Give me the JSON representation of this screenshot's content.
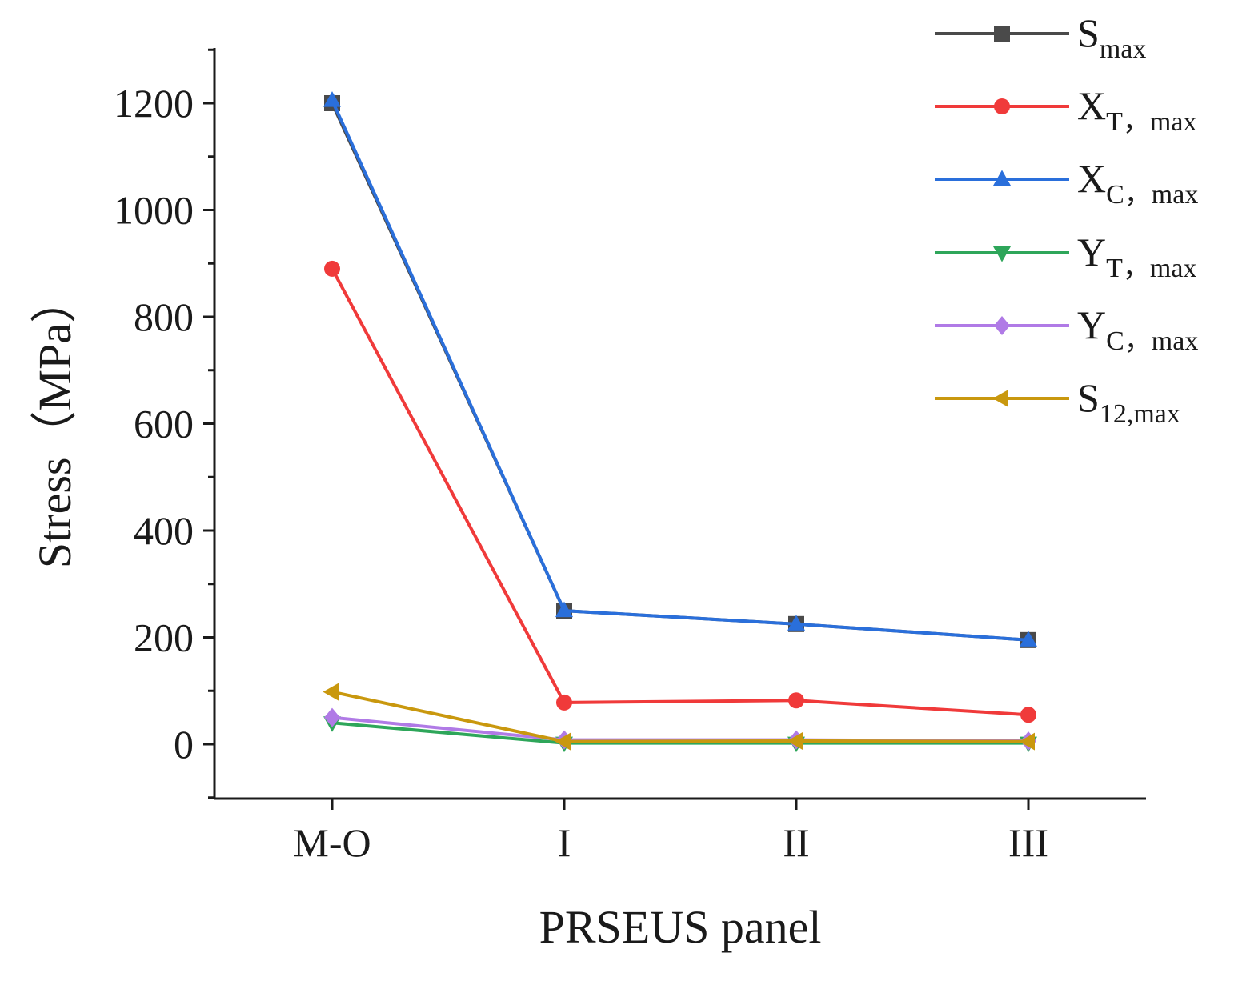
{
  "chart_data": {
    "type": "line",
    "title": "",
    "xlabel": "PRSEUS panel",
    "ylabel": "Stress（MPa）",
    "categories": [
      "M-O",
      "I",
      "II",
      "III"
    ],
    "ylim": [
      -100,
      1300
    ],
    "yticks": [
      0,
      200,
      400,
      600,
      800,
      1000,
      1200
    ],
    "grid": false,
    "legend_position": "top-right",
    "series": [
      {
        "name": "S",
        "sub": "max",
        "color": "#4a4a4a",
        "marker": "square",
        "values": [
          1200,
          250,
          225,
          195
        ]
      },
      {
        "name": "X",
        "sub": "T，max",
        "color": "#f03a3a",
        "marker": "circle",
        "values": [
          890,
          78,
          82,
          55
        ]
      },
      {
        "name": "X",
        "sub": "C，max",
        "color": "#2a6fdb",
        "marker": "triangle-up",
        "values": [
          1205,
          250,
          225,
          195
        ]
      },
      {
        "name": "Y",
        "sub": "T，max",
        "color": "#2ea65a",
        "marker": "triangle-down",
        "values": [
          40,
          2,
          2,
          2
        ]
      },
      {
        "name": "Y",
        "sub": "C，max",
        "color": "#b07ae6",
        "marker": "diamond",
        "values": [
          50,
          8,
          8,
          6
        ]
      },
      {
        "name": "S",
        "sub": "12,max",
        "color": "#c9980e",
        "marker": "triangle-left",
        "values": [
          98,
          5,
          6,
          5
        ]
      }
    ]
  }
}
